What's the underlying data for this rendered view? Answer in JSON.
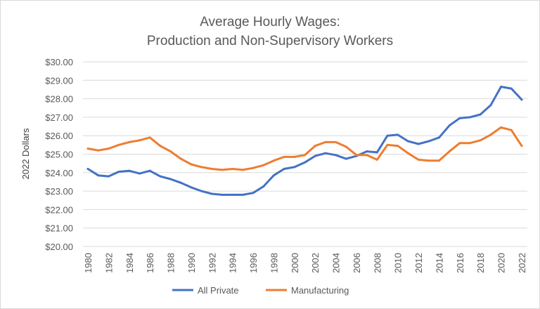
{
  "chart_data": {
    "type": "line",
    "title": [
      "Average Hourly Wages:",
      "Production and Non-Supervisory Workers"
    ],
    "xlabel": "",
    "ylabel": "2022 Dollars",
    "ylim": [
      20,
      30
    ],
    "yticks": [
      "$20.00",
      "$21.00",
      "$22.00",
      "$23.00",
      "$24.00",
      "$25.00",
      "$26.00",
      "$27.00",
      "$28.00",
      "$29.00",
      "$30.00"
    ],
    "x": [
      1980,
      1981,
      1982,
      1983,
      1984,
      1985,
      1986,
      1987,
      1988,
      1989,
      1990,
      1991,
      1992,
      1993,
      1994,
      1995,
      1996,
      1997,
      1998,
      1999,
      2000,
      2001,
      2002,
      2003,
      2004,
      2005,
      2006,
      2007,
      2008,
      2009,
      2010,
      2011,
      2012,
      2013,
      2014,
      2015,
      2016,
      2017,
      2018,
      2019,
      2020,
      2021,
      2022
    ],
    "xtick_labels": [
      "1980",
      "1982",
      "1984",
      "1986",
      "1988",
      "1990",
      "1992",
      "1994",
      "1996",
      "1998",
      "2000",
      "2002",
      "2004",
      "2006",
      "2008",
      "2010",
      "2012",
      "2014",
      "2016",
      "2018",
      "2020",
      "2022"
    ],
    "grid": true,
    "legend_position": "bottom",
    "series": [
      {
        "name": "All Private",
        "color": "#4472C4",
        "values": [
          24.2,
          23.85,
          23.8,
          24.05,
          24.1,
          23.95,
          24.1,
          23.8,
          23.65,
          23.45,
          23.2,
          23.0,
          22.85,
          22.8,
          22.8,
          22.8,
          22.9,
          23.25,
          23.85,
          24.2,
          24.3,
          24.55,
          24.9,
          25.05,
          24.95,
          24.75,
          24.9,
          25.15,
          25.1,
          26.0,
          26.05,
          25.7,
          25.55,
          25.7,
          25.9,
          26.55,
          26.95,
          27.0,
          27.15,
          27.65,
          28.65,
          28.55,
          27.95
        ]
      },
      {
        "name": "Manufacturing",
        "color": "#ED7D31",
        "values": [
          25.3,
          25.2,
          25.3,
          25.5,
          25.65,
          25.75,
          25.9,
          25.45,
          25.15,
          24.75,
          24.45,
          24.3,
          24.2,
          24.15,
          24.2,
          24.15,
          24.25,
          24.4,
          24.65,
          24.85,
          24.85,
          24.95,
          25.45,
          25.65,
          25.65,
          25.4,
          24.95,
          24.95,
          24.7,
          25.5,
          25.45,
          25.05,
          24.7,
          24.65,
          24.65,
          25.15,
          25.6,
          25.6,
          25.75,
          26.05,
          26.45,
          26.3,
          25.45
        ]
      }
    ]
  }
}
